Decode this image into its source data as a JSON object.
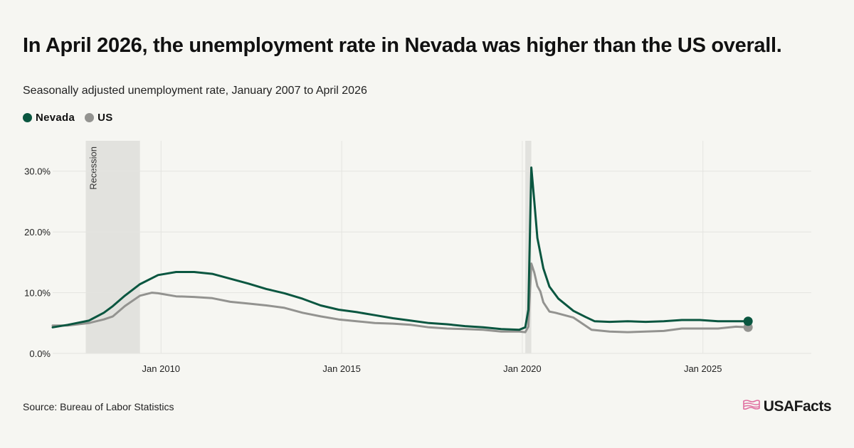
{
  "header": {
    "title": "In April 2026, the unemployment rate in Nevada was higher than the US overall.",
    "subtitle": "Seasonally adjusted unemployment rate, January 2007 to April 2026"
  },
  "legend": [
    {
      "label": "Nevada",
      "color": "#0a5640"
    },
    {
      "label": "US",
      "color": "#939390"
    }
  ],
  "footer": {
    "source": "Source: Bureau of Labor Statistics",
    "logo_text": "USAFacts",
    "logo_icon": "us-flag-map-icon"
  },
  "chart_data": {
    "type": "line",
    "x_start": "2007-01",
    "x_end": "2028-01",
    "ylim": [
      0,
      35
    ],
    "yticks": [
      0,
      10,
      20,
      30
    ],
    "ytick_labels": [
      "0.0%",
      "10.0%",
      "20.0%",
      "30.0%"
    ],
    "xticks": [
      "2010-01",
      "2015-01",
      "2020-01",
      "2025-01"
    ],
    "xtick_labels": [
      "Jan 2010",
      "Jan 2015",
      "Jan 2020",
      "Jan 2025"
    ],
    "recessions": [
      {
        "start": "2007-12",
        "end": "2009-06",
        "label": "Recession"
      },
      {
        "start": "2020-02",
        "end": "2020-04",
        "label": ""
      }
    ],
    "series": [
      {
        "name": "Nevada",
        "color": "#0a5640",
        "points": [
          [
            "2007-01",
            4.3
          ],
          [
            "2007-06",
            4.7
          ],
          [
            "2008-01",
            5.4
          ],
          [
            "2008-06",
            6.7
          ],
          [
            "2008-09",
            7.8
          ],
          [
            "2009-01",
            9.5
          ],
          [
            "2009-06",
            11.4
          ],
          [
            "2009-12",
            12.9
          ],
          [
            "2010-06",
            13.4
          ],
          [
            "2010-12",
            13.4
          ],
          [
            "2011-06",
            13.1
          ],
          [
            "2011-12",
            12.3
          ],
          [
            "2012-06",
            11.5
          ],
          [
            "2012-12",
            10.6
          ],
          [
            "2013-06",
            9.9
          ],
          [
            "2013-12",
            9.0
          ],
          [
            "2014-06",
            7.9
          ],
          [
            "2014-12",
            7.2
          ],
          [
            "2015-06",
            6.8
          ],
          [
            "2015-12",
            6.3
          ],
          [
            "2016-06",
            5.8
          ],
          [
            "2016-12",
            5.4
          ],
          [
            "2017-06",
            5.0
          ],
          [
            "2017-12",
            4.8
          ],
          [
            "2018-06",
            4.5
          ],
          [
            "2018-12",
            4.3
          ],
          [
            "2019-06",
            4.0
          ],
          [
            "2019-12",
            3.9
          ],
          [
            "2020-02",
            4.3
          ],
          [
            "2020-03",
            7.2
          ],
          [
            "2020-04",
            30.6
          ],
          [
            "2020-05",
            25.0
          ],
          [
            "2020-06",
            19.0
          ],
          [
            "2020-08",
            14.0
          ],
          [
            "2020-10",
            11.0
          ],
          [
            "2021-01",
            9.0
          ],
          [
            "2021-06",
            7.0
          ],
          [
            "2021-10",
            6.0
          ],
          [
            "2022-01",
            5.3
          ],
          [
            "2022-06",
            5.2
          ],
          [
            "2022-12",
            5.3
          ],
          [
            "2023-06",
            5.2
          ],
          [
            "2023-12",
            5.3
          ],
          [
            "2024-06",
            5.5
          ],
          [
            "2024-12",
            5.5
          ],
          [
            "2025-06",
            5.3
          ],
          [
            "2025-12",
            5.3
          ],
          [
            "2026-04",
            5.3
          ]
        ]
      },
      {
        "name": "US",
        "color": "#939390",
        "points": [
          [
            "2007-01",
            4.6
          ],
          [
            "2007-06",
            4.6
          ],
          [
            "2008-01",
            5.0
          ],
          [
            "2008-06",
            5.6
          ],
          [
            "2008-09",
            6.1
          ],
          [
            "2009-01",
            7.8
          ],
          [
            "2009-06",
            9.5
          ],
          [
            "2009-10",
            10.0
          ],
          [
            "2009-12",
            9.9
          ],
          [
            "2010-06",
            9.4
          ],
          [
            "2010-12",
            9.3
          ],
          [
            "2011-06",
            9.1
          ],
          [
            "2011-12",
            8.5
          ],
          [
            "2012-06",
            8.2
          ],
          [
            "2012-12",
            7.9
          ],
          [
            "2013-06",
            7.5
          ],
          [
            "2013-12",
            6.7
          ],
          [
            "2014-06",
            6.1
          ],
          [
            "2014-12",
            5.6
          ],
          [
            "2015-06",
            5.3
          ],
          [
            "2015-12",
            5.0
          ],
          [
            "2016-06",
            4.9
          ],
          [
            "2016-12",
            4.7
          ],
          [
            "2017-06",
            4.3
          ],
          [
            "2017-12",
            4.1
          ],
          [
            "2018-06",
            4.0
          ],
          [
            "2018-12",
            3.9
          ],
          [
            "2019-06",
            3.6
          ],
          [
            "2019-12",
            3.6
          ],
          [
            "2020-02",
            3.5
          ],
          [
            "2020-03",
            4.4
          ],
          [
            "2020-04",
            14.8
          ],
          [
            "2020-05",
            13.3
          ],
          [
            "2020-06",
            11.1
          ],
          [
            "2020-07",
            10.2
          ],
          [
            "2020-08",
            8.4
          ],
          [
            "2020-10",
            6.9
          ],
          [
            "2020-12",
            6.7
          ],
          [
            "2021-06",
            5.9
          ],
          [
            "2021-12",
            3.9
          ],
          [
            "2022-06",
            3.6
          ],
          [
            "2022-12",
            3.5
          ],
          [
            "2023-06",
            3.6
          ],
          [
            "2023-12",
            3.7
          ],
          [
            "2024-06",
            4.1
          ],
          [
            "2024-12",
            4.1
          ],
          [
            "2025-06",
            4.1
          ],
          [
            "2025-12",
            4.4
          ],
          [
            "2026-04",
            4.3
          ]
        ]
      }
    ]
  }
}
